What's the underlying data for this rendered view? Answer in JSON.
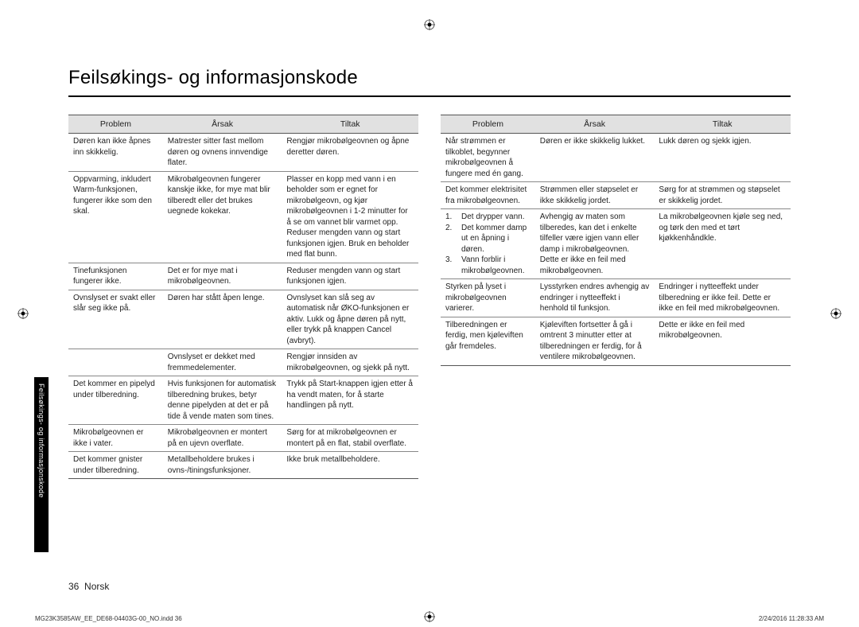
{
  "title": "Feilsøkings- og informasjonskode",
  "sideTab": "Feilsøkings- og informasjonskode",
  "tableHeaders": {
    "problem": "Problem",
    "cause": "Årsak",
    "action": "Tiltak"
  },
  "table1": [
    {
      "problem": "Døren kan ikke åpnes inn skikkelig.",
      "cause": "Matrester sitter fast mellom døren og ovnens innvendige flater.",
      "action": "Rengjør mikrobølgeovnen og åpne deretter døren."
    },
    {
      "problem": "Oppvarming, inkludert Warm-funksjonen, fungerer ikke som den skal.",
      "cause": "Mikrobølgeovnen fungerer kanskje ikke, for mye mat blir tilberedt eller det brukes uegnede kokekar.",
      "action": "Plasser en kopp med vann i en beholder som er egnet for mikrobølgeovn, og kjør mikrobølgeovnen i 1-2 minutter for å se om vannet blir varmet opp. Reduser mengden vann og start funksjonen igjen. Bruk en beholder med flat bunn."
    },
    {
      "problem": "Tinefunksjonen fungerer ikke.",
      "cause": "Det er for mye mat i mikrobølgeovnen.",
      "action": "Reduser mengden vann og start funksjonen igjen."
    },
    {
      "problem": "Ovnslyset er svakt eller slår seg ikke på.",
      "cause": "Døren har stått åpen lenge.",
      "action": "Ovnslyset kan slå seg av automatisk når ØKO-funksjonen er aktiv. Lukk og åpne døren på nytt, eller trykk på knappen Cancel (avbryt)."
    },
    {
      "problem": "",
      "cause": "Ovnslyset er dekket med fremmedelementer.",
      "action": "Rengjør innsiden av mikrobølgeovnen, og sjekk på nytt."
    },
    {
      "problem": "Det kommer en pipelyd under tilberedning.",
      "cause": "Hvis funksjonen for automatisk tilberedning brukes, betyr denne pipelyden at det er på tide å vende maten som tines.",
      "action": "Trykk på Start-knappen igjen etter å ha vendt maten, for å starte handlingen på nytt."
    },
    {
      "problem": "Mikrobølgeovnen er ikke i vater.",
      "cause": "Mikrobølgeovnen er montert på en ujevn overflate.",
      "action": "Sørg for at mikrobølgeovnen er montert på en flat, stabil overflate."
    },
    {
      "problem": "Det kommer gnister under tilberedning.",
      "cause": "Metallbeholdere brukes i ovns-/tiningsfunksjoner.",
      "action": "Ikke bruk metallbeholdere."
    }
  ],
  "table2": [
    {
      "problem": "Når strømmen er tilkoblet, begynner mikrobølgeovnen å fungere med én gang.",
      "cause": "Døren er ikke skikkelig lukket.",
      "action": "Lukk døren og sjekk igjen."
    },
    {
      "problem": "Det kommer elektrisitet fra mikrobølgeovnen.",
      "cause": "Strømmen eller støpselet er ikke skikkelig jordet.",
      "action": "Sørg for at strømmen og støpselet er skikkelig jordet."
    },
    {
      "problem_list": [
        {
          "n": "1.",
          "t": "Det drypper vann."
        },
        {
          "n": "2.",
          "t": "Det kommer damp ut en åpning i døren."
        },
        {
          "n": "3.",
          "t": "Vann forblir i mikrobølgeovnen."
        }
      ],
      "cause": "Avhengig av maten som tilberedes, kan det i enkelte tilfeller være igjen vann eller damp i mikrobølgeovnen. Dette er ikke en feil med mikrobølgeovnen.",
      "action": "La mikrobølgeovnen kjøle seg ned, og tørk den med et tørt kjøkkenhåndkle."
    },
    {
      "problem": "Styrken på lyset i mikrobølgeovnen varierer.",
      "cause": "Lysstyrken endres avhengig av endringer i nytteeffekt i henhold til funksjon.",
      "action": "Endringer i nytteeffekt under tilberedning er ikke feil. Dette er ikke en feil med mikrobølgeovnen."
    },
    {
      "problem": "Tilberedningen er ferdig, men kjøleviften går fremdeles.",
      "cause": "Kjøleviften fortsetter å gå i omtrent 3 minutter etter at tilberedningen er ferdig, for å ventilere mikrobølgeovnen.",
      "action": "Dette er ikke en feil med mikrobølgeovnen."
    }
  ],
  "footer": {
    "pageNumber": "36",
    "lang": "Norsk",
    "filename": "MG23K3585AW_EE_DE68-04403G-00_NO.indd   36",
    "timestamp": "2/24/2016   11:28:33 AM"
  },
  "colors": {
    "header_bg": "#e1e1e1",
    "border": "#888888",
    "text": "#222222",
    "tab_bg": "#000000",
    "tab_text": "#ffffff"
  }
}
